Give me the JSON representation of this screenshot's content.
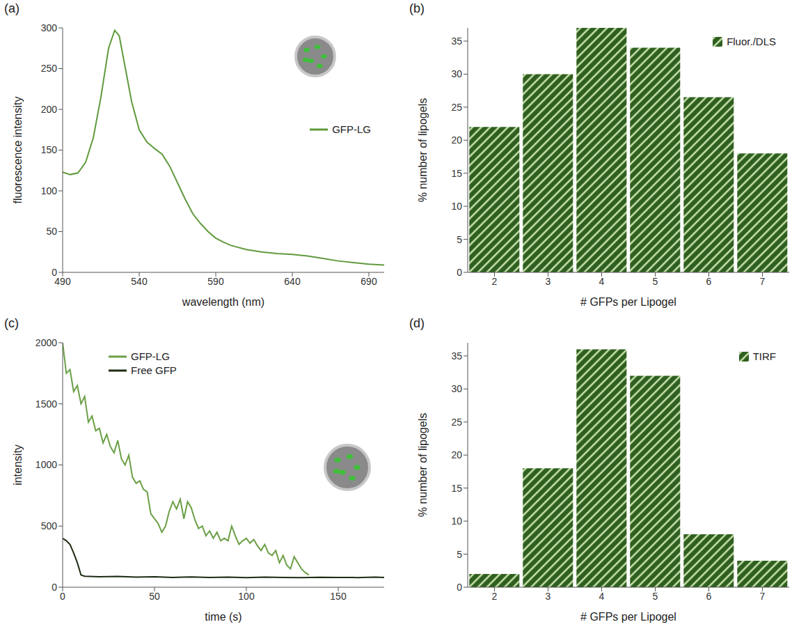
{
  "chart_data": [
    {
      "panel": "(a)",
      "type": "line",
      "x_label": "wavelength (nm)",
      "y_label": "fluorescence intensity",
      "xlim": [
        490,
        700
      ],
      "xticks": [
        490,
        540,
        590,
        640,
        690
      ],
      "ylim": [
        0,
        300
      ],
      "yticks": [
        0,
        50,
        100,
        150,
        200,
        250,
        300
      ],
      "legend": "right",
      "series": [
        {
          "name": "GFP-LG",
          "color": "#5f9a3c",
          "x": [
            490,
            495,
            500,
            505,
            510,
            515,
            520,
            524,
            527,
            530,
            535,
            540,
            545,
            550,
            555,
            560,
            565,
            570,
            575,
            580,
            585,
            590,
            595,
            600,
            610,
            620,
            630,
            640,
            650,
            660,
            670,
            680,
            690,
            700
          ],
          "values": [
            123,
            120,
            122,
            135,
            165,
            215,
            275,
            297,
            290,
            260,
            210,
            175,
            160,
            152,
            145,
            130,
            110,
            90,
            72,
            60,
            50,
            42,
            37,
            33,
            28,
            25,
            23,
            22,
            20,
            17,
            14,
            12,
            10,
            9
          ]
        }
      ]
    },
    {
      "panel": "(b)",
      "type": "bar",
      "x_label": "# GFPs per Lipogel",
      "y_label": "% number of lipogels",
      "categories": [
        2,
        3,
        4,
        5,
        6,
        7
      ],
      "ylim": [
        0,
        37
      ],
      "yticks": [
        0,
        5,
        10,
        15,
        20,
        25,
        30,
        35
      ],
      "legend": "upper right",
      "series": [
        {
          "name": "Fluor./DLS",
          "color": "#2f5f1f",
          "values": [
            22,
            30,
            37,
            34,
            26.5,
            18
          ]
        }
      ]
    },
    {
      "panel": "(c)",
      "type": "line",
      "x_label": "time (s)",
      "y_label": "intensity",
      "xlim": [
        0,
        175
      ],
      "xticks": [
        0,
        50,
        100,
        150
      ],
      "ylim": [
        0,
        2000
      ],
      "yticks": [
        0,
        500,
        1000,
        1500,
        2000
      ],
      "legend": "upper center",
      "series": [
        {
          "name": "GFP-LG",
          "color": "#6a9f45",
          "x": [
            0,
            2,
            4,
            6,
            8,
            10,
            12,
            14,
            16,
            18,
            20,
            22,
            24,
            26,
            28,
            30,
            32,
            34,
            36,
            38,
            40,
            42,
            44,
            46,
            48,
            50,
            52,
            54,
            56,
            58,
            60,
            62,
            64,
            66,
            68,
            70,
            72,
            74,
            76,
            78,
            80,
            82,
            84,
            86,
            88,
            90,
            92,
            94,
            96,
            98,
            100,
            102,
            104,
            106,
            108,
            110,
            112,
            114,
            116,
            118,
            120,
            122,
            124,
            126,
            128,
            130,
            132,
            134
          ],
          "values": [
            2000,
            1750,
            1780,
            1600,
            1650,
            1500,
            1560,
            1350,
            1400,
            1280,
            1300,
            1180,
            1250,
            1150,
            1100,
            1200,
            1050,
            1000,
            1080,
            900,
            850,
            870,
            800,
            780,
            600,
            560,
            520,
            450,
            500,
            620,
            700,
            640,
            720,
            560,
            700,
            650,
            550,
            480,
            500,
            420,
            460,
            400,
            450,
            380,
            400,
            380,
            500,
            420,
            350,
            380,
            400,
            360,
            390,
            340,
            300,
            350,
            280,
            260,
            300,
            200,
            260,
            180,
            150,
            250,
            200,
            150,
            120,
            100
          ]
        },
        {
          "name": "Free GFP",
          "color": "#1e2b14",
          "x": [
            0,
            2,
            4,
            6,
            8,
            10,
            12,
            20,
            30,
            40,
            50,
            60,
            70,
            80,
            90,
            100,
            110,
            120,
            130,
            140,
            150,
            160,
            170,
            175
          ],
          "values": [
            400,
            380,
            350,
            280,
            200,
            100,
            90,
            85,
            88,
            82,
            86,
            80,
            84,
            80,
            83,
            79,
            82,
            80,
            78,
            81,
            80,
            79,
            82,
            80
          ]
        }
      ]
    },
    {
      "panel": "(d)",
      "type": "bar",
      "x_label": "# GFPs per Lipogel",
      "y_label": "% number of lipogels",
      "categories": [
        2,
        3,
        4,
        5,
        6,
        7
      ],
      "ylim": [
        0,
        37
      ],
      "yticks": [
        0,
        5,
        10,
        15,
        20,
        25,
        30,
        35
      ],
      "legend": "upper right",
      "series": [
        {
          "name": "TIRF",
          "color": "#2f5f1f",
          "values": [
            2,
            18,
            36,
            32,
            8,
            4
          ]
        }
      ]
    }
  ]
}
